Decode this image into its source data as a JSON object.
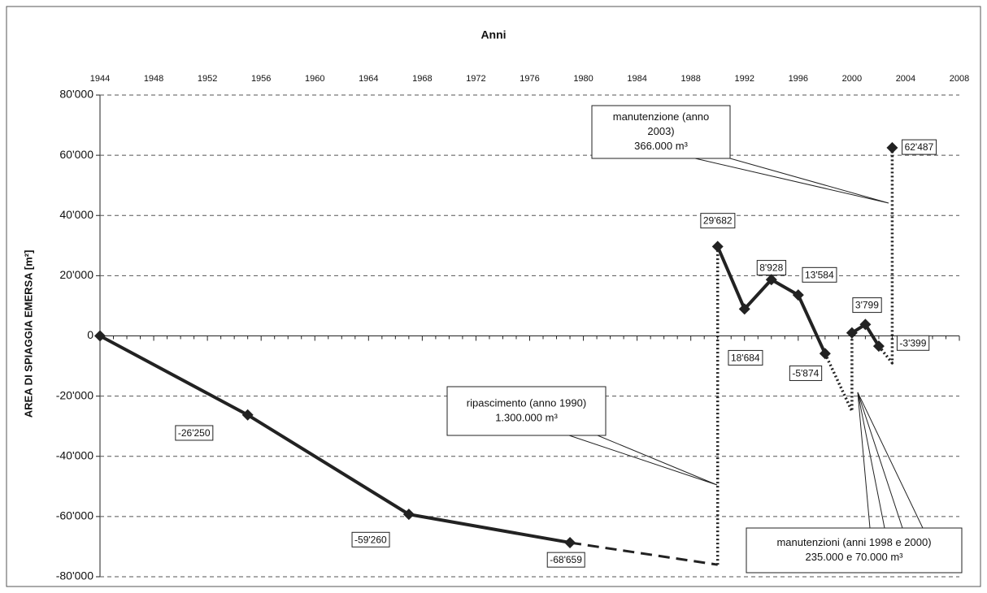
{
  "chart_data": {
    "type": "line",
    "title": "Anni",
    "y_label": "AREA DI SPIAGGIA EMERSA [m²]",
    "xlim": [
      1944,
      2008
    ],
    "xticks": [
      1944,
      1948,
      1952,
      1956,
      1960,
      1964,
      1968,
      1972,
      1976,
      1980,
      1984,
      1988,
      1992,
      1996,
      2000,
      2004,
      2008
    ],
    "ylim": [
      -80000,
      80000
    ],
    "yticks": [
      {
        "value": -80000,
        "label": "-80'000"
      },
      {
        "value": -60000,
        "label": "-60'000"
      },
      {
        "value": -40000,
        "label": "-40'000"
      },
      {
        "value": -20000,
        "label": "-20'000"
      },
      {
        "value": 0,
        "label": "0"
      },
      {
        "value": 20000,
        "label": "20'000"
      },
      {
        "value": 40000,
        "label": "40'000"
      },
      {
        "value": 60000,
        "label": "60'000"
      },
      {
        "value": 80000,
        "label": "80'000"
      }
    ],
    "grid": true,
    "color": "#222222",
    "series": [
      {
        "style": "solid",
        "markers": true,
        "x": [
          1944,
          1955,
          1967,
          1979
        ],
        "values": [
          0,
          -26250,
          -59260,
          -68659
        ],
        "value_labels": [
          null,
          "-26'250",
          "-59'260",
          "-68'659"
        ]
      },
      {
        "style": "dashed",
        "x": [
          1979,
          1990
        ],
        "values": [
          -68659,
          -76000
        ]
      },
      {
        "style": "dotted",
        "x": [
          1990,
          1990
        ],
        "values": [
          -76000,
          29682
        ]
      },
      {
        "style": "solid",
        "markers": true,
        "x": [
          1990,
          1992,
          1994,
          1996,
          1998
        ],
        "values": [
          29682,
          8928,
          18684,
          13584,
          -5874
        ],
        "value_labels": [
          "29'682",
          "8'928",
          "18'684",
          "13'584",
          "-5'874"
        ]
      },
      {
        "style": "dotted",
        "x": [
          1998,
          2000,
          2000
        ],
        "values": [
          -5874,
          -25000,
          1000
        ]
      },
      {
        "style": "solid",
        "markers": true,
        "x": [
          2000,
          2001,
          2002
        ],
        "values": [
          1000,
          3799,
          -3399
        ],
        "value_labels": [
          null,
          "3'799",
          "-3'399"
        ]
      },
      {
        "style": "dotted",
        "x": [
          2002,
          2003,
          2003
        ],
        "values": [
          -3399,
          -9000,
          62487
        ]
      },
      {
        "style": "solid",
        "markers": true,
        "x": [
          2003
        ],
        "values": [
          62487
        ],
        "value_labels": [
          "62'487"
        ]
      }
    ],
    "annotations": [
      {
        "lines": [
          "manutenzione (anno",
          "2003)",
          "366.000 m³"
        ]
      },
      {
        "lines": [
          "ripascimento (anno 1990)",
          "1.300.000 m³"
        ]
      },
      {
        "lines": [
          "manutenzioni (anni 1998 e 2000)",
          "235.000 e 70.000 m³"
        ]
      }
    ]
  }
}
